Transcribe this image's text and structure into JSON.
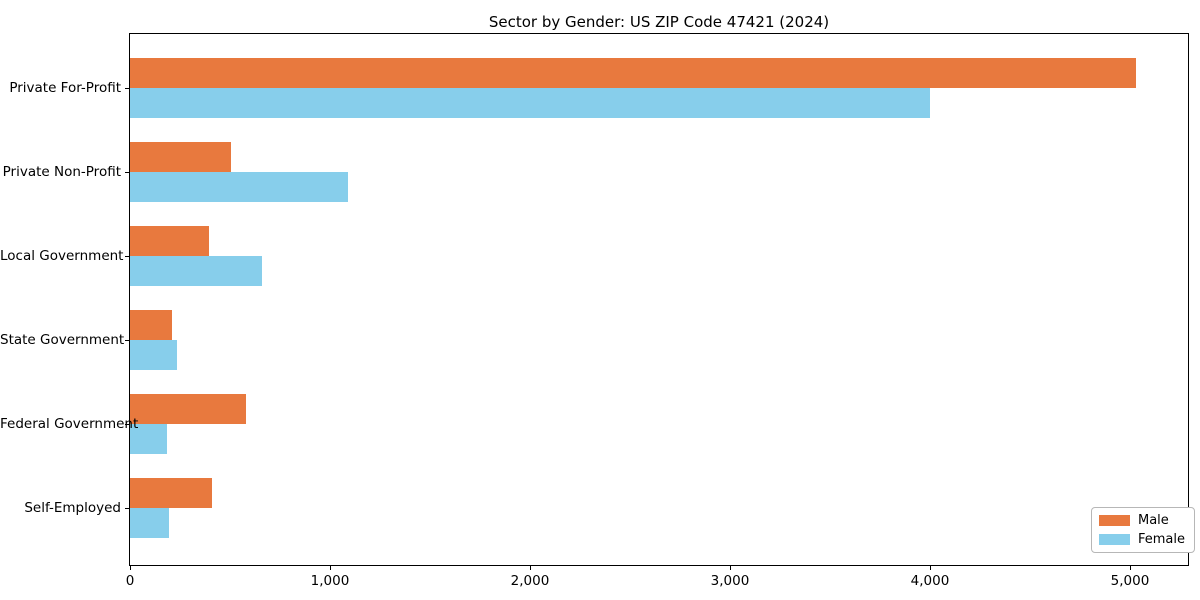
{
  "figure": {
    "kind": "matplotlib-style horizontal grouped bar chart"
  },
  "chart_data": {
    "type": "bar",
    "orientation": "horizontal",
    "title": "Sector by Gender: US ZIP Code 47421 (2024)",
    "xlabel": "",
    "ylabel": "",
    "categories": [
      "Private For-Profit",
      "Private Non-Profit",
      "Local Government",
      "State Government",
      "Federal Government",
      "Self-Employed"
    ],
    "series": [
      {
        "name": "Male",
        "color": "#e8793e",
        "values": [
          5030,
          505,
          395,
          210,
          580,
          410
        ]
      },
      {
        "name": "Female",
        "color": "#87ceeb",
        "values": [
          4000,
          1090,
          660,
          235,
          185,
          195
        ]
      }
    ],
    "xlim": [
      0,
      5290
    ],
    "xticks": [
      0,
      1000,
      2000,
      3000,
      4000,
      5000
    ],
    "xtick_labels": [
      "0",
      "1,000",
      "2,000",
      "3,000",
      "4,000",
      "5,000"
    ],
    "grid": false,
    "legend": {
      "position": "lower right",
      "entries": [
        "Male",
        "Female"
      ]
    },
    "colors": {
      "male": "#e8793e",
      "female": "#87ceeb",
      "spine": "#000000",
      "background": "#ffffff"
    }
  }
}
